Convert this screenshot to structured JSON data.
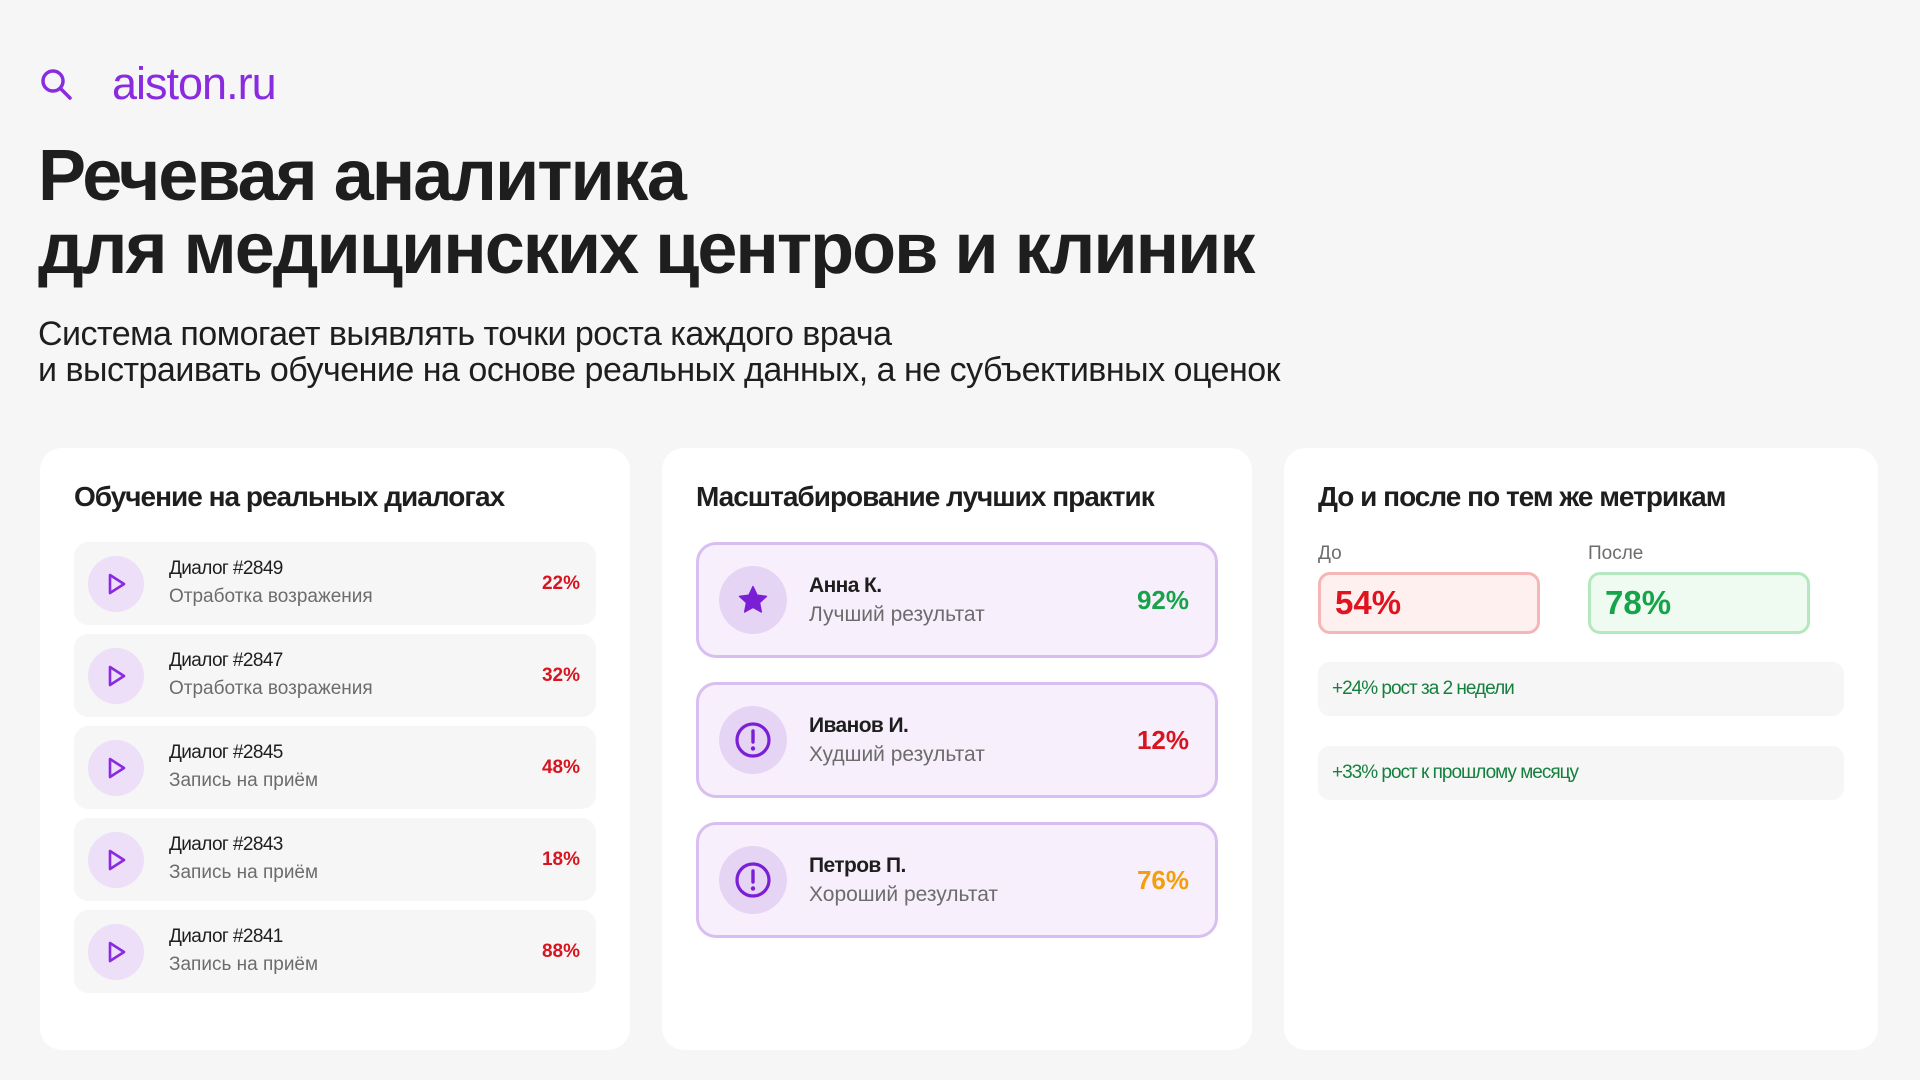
{
  "brand": {
    "icon": "search-icon",
    "name": "aiston.ru",
    "color": "#8a2be2"
  },
  "hero": {
    "title_line1": "Речевая аналитика",
    "title_line2": "для медицинских центров и клиник",
    "subtitle_line1": "Система помогает выявлять точки роста каждого врача",
    "subtitle_line2": "и выстраивать обучение на основе реальных данных, а не субъективных оценок"
  },
  "training": {
    "title": "Обучение на реальных диалогах",
    "dialogs": [
      {
        "id": "Диалог #2849",
        "topic": "Отработка возражения",
        "score": "22%",
        "icon": "play-icon"
      },
      {
        "id": "Диалог #2847",
        "topic": "Отработка возражения",
        "score": "32%",
        "icon": "play-icon"
      },
      {
        "id": "Диалог #2845",
        "topic": "Запись на приём",
        "score": "48%",
        "icon": "play-icon"
      },
      {
        "id": "Диалог #2843",
        "topic": "Запись на приём",
        "score": "18%",
        "icon": "play-icon"
      },
      {
        "id": "Диалог #2841",
        "topic": "Запись на приём",
        "score": "88%",
        "icon": "play-icon"
      }
    ],
    "score_color": "#d9141f"
  },
  "practices": {
    "title": "Масштабирование лучших практик",
    "items": [
      {
        "name": "Анна К.",
        "status": "Лучший результат",
        "score": "92%",
        "icon": "star-icon",
        "color": "#16a34a"
      },
      {
        "name": "Иванов И.",
        "status": "Худший результат",
        "score": "12%",
        "icon": "alert-icon",
        "color": "#d9141f"
      },
      {
        "name": "Петров П.",
        "status": "Хороший результат",
        "score": "76%",
        "icon": "alert-icon",
        "color": "#f59e0b"
      }
    ]
  },
  "comparison": {
    "title": "До и после по тем же метрикам",
    "before_label": "До",
    "before_value": "54%",
    "after_label": "После",
    "after_value": "78%",
    "growth": [
      "+24% рост за 2 недели",
      "+33% рост к прошлому месяцу"
    ],
    "before_color": "#e0141f",
    "after_color": "#16a34a"
  }
}
